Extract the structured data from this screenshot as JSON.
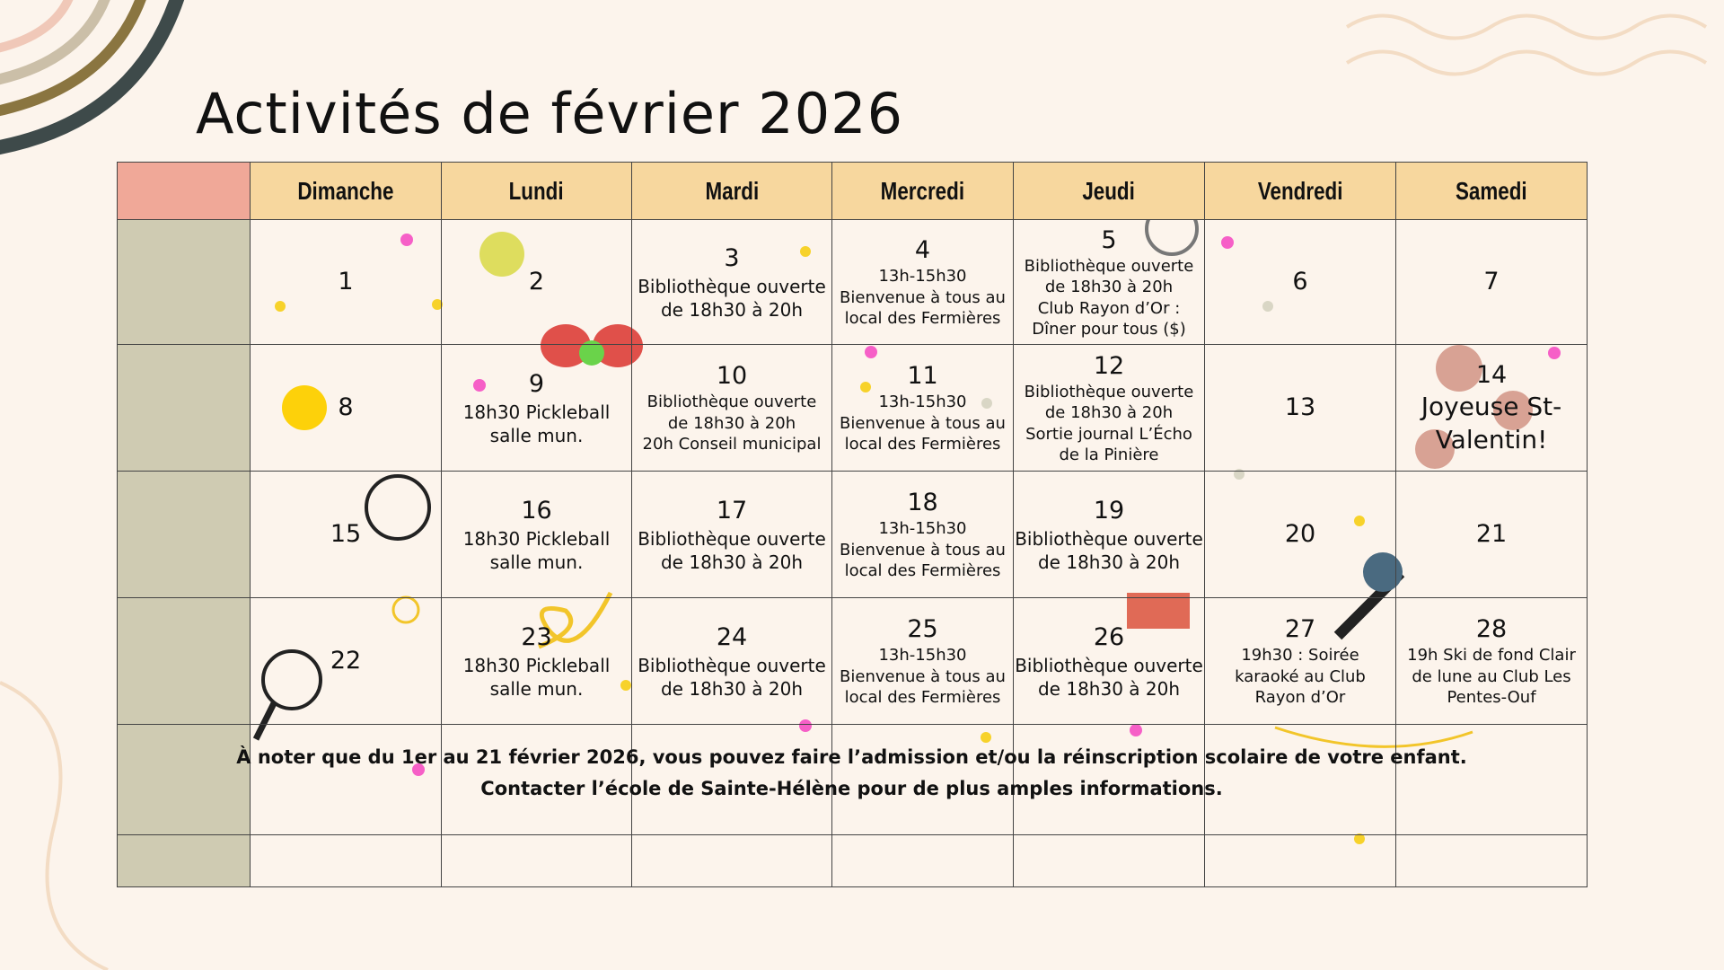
{
  "title": "Activités de février 2026",
  "days": [
    "Dimanche",
    "Lundi",
    "Mardi",
    "Mercredi",
    "Jeudi",
    "Vendredi",
    "Samedi"
  ],
  "weeks": [
    [
      {
        "day": 1,
        "lines": []
      },
      {
        "day": 2,
        "lines": []
      },
      {
        "day": 3,
        "lines": [
          "Bibliothèque ouverte",
          "de 18h30 à 20h"
        ]
      },
      {
        "day": 4,
        "lines": [
          "13h-15h30",
          "Bienvenue à tous au",
          "local des Fermières"
        ]
      },
      {
        "day": 5,
        "lines": [
          "Bibliothèque ouverte",
          "de 18h30 à 20h",
          "Club Rayon d’Or :",
          "Dîner pour tous ($)"
        ]
      },
      {
        "day": 6,
        "lines": []
      },
      {
        "day": 7,
        "lines": []
      }
    ],
    [
      {
        "day": 8,
        "lines": []
      },
      {
        "day": 9,
        "lines": [
          "18h30 Pickleball",
          "salle mun."
        ]
      },
      {
        "day": 10,
        "lines": [
          "Bibliothèque ouverte",
          "de 18h30 à 20h",
          "20h Conseil municipal"
        ]
      },
      {
        "day": 11,
        "lines": [
          "13h-15h30",
          "Bienvenue à tous au",
          "local des Fermières"
        ]
      },
      {
        "day": 12,
        "lines": [
          "Bibliothèque ouverte",
          "de 18h30 à 20h",
          "Sortie journal L’Écho",
          "de la Pinière"
        ]
      },
      {
        "day": 13,
        "lines": []
      },
      {
        "day": 14,
        "lines": [
          "Joyeuse St-",
          "Valentin!"
        ]
      }
    ],
    [
      {
        "day": 15,
        "lines": []
      },
      {
        "day": 16,
        "lines": [
          "18h30 Pickleball",
          "salle mun."
        ]
      },
      {
        "day": 17,
        "lines": [
          "Bibliothèque ouverte",
          "de 18h30 à 20h"
        ]
      },
      {
        "day": 18,
        "lines": [
          "13h-15h30",
          "Bienvenue à tous au",
          "local des Fermières"
        ]
      },
      {
        "day": 19,
        "lines": [
          "Bibliothèque ouverte",
          "de 18h30 à 20h"
        ]
      },
      {
        "day": 20,
        "lines": []
      },
      {
        "day": 21,
        "lines": []
      }
    ],
    [
      {
        "day": 22,
        "lines": []
      },
      {
        "day": 23,
        "lines": [
          "18h30 Pickleball",
          "salle mun."
        ]
      },
      {
        "day": 24,
        "lines": [
          "Bibliothèque ouverte",
          "de 18h30 à 20h"
        ]
      },
      {
        "day": 25,
        "lines": [
          "13h-15h30",
          "Bienvenue à tous au",
          "local des Fermières"
        ]
      },
      {
        "day": 26,
        "lines": [
          "Bibliothèque ouverte",
          "de 18h30 à 20h"
        ]
      },
      {
        "day": 27,
        "lines": [
          "19h30 : Soirée",
          "karaoké au Club",
          "Rayon d’Or"
        ]
      },
      {
        "day": 28,
        "lines": [
          "19h Ski de fond Clair",
          "de lune au Club Les",
          "Pentes-Ouf"
        ]
      }
    ]
  ],
  "note": [
    "À noter que du 1er au 21 février 2026, vous pouvez faire l’admission et/ou la réinscription scolaire de votre enfant.",
    "Contacter l’école de Sainte-Hélène pour de plus amples informations."
  ]
}
